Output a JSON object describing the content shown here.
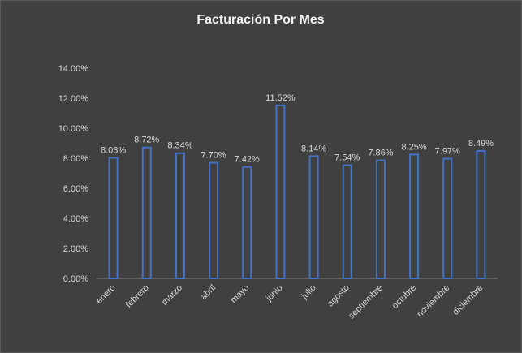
{
  "chart_data": {
    "type": "bar",
    "title": "Facturación Por Mes",
    "xlabel": "",
    "ylabel": "",
    "categories": [
      "enero",
      "febrero",
      "marzo",
      "abril",
      "mayo",
      "junio",
      "julio",
      "agosto",
      "septiembre",
      "octubre",
      "noviembre",
      "diciembre"
    ],
    "values": [
      8.03,
      8.72,
      8.34,
      7.7,
      7.42,
      11.52,
      8.14,
      7.54,
      7.86,
      8.25,
      7.97,
      8.49
    ],
    "data_labels": [
      "8.03%",
      "8.72%",
      "8.34%",
      "7.70%",
      "7.42%",
      "11.52%",
      "8.14%",
      "7.54%",
      "7.86%",
      "8.25%",
      "7.97%",
      "8.49%"
    ],
    "ylim": [
      0,
      14
    ],
    "yticks": [
      0,
      2,
      4,
      6,
      8,
      10,
      12,
      14
    ],
    "ytick_labels": [
      "0.00%",
      "2.00%",
      "4.00%",
      "6.00%",
      "8.00%",
      "10.00%",
      "12.00%",
      "14.00%"
    ],
    "grid": false,
    "legend": "none",
    "colors": {
      "background": "#404040",
      "bar_outline": "#4472c4",
      "text": "#d9d9d9"
    }
  }
}
